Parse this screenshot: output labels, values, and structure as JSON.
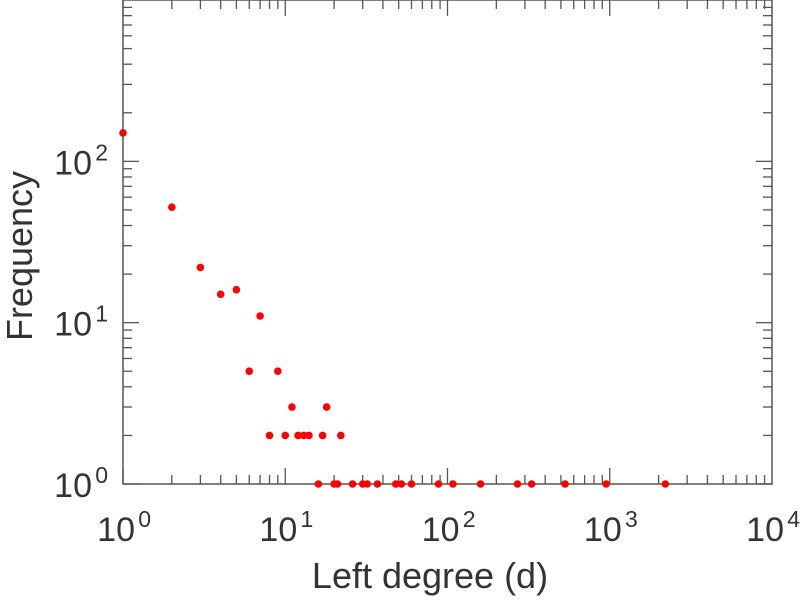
{
  "chart_data": {
    "type": "scatter",
    "title": "",
    "xlabel": "Left degree (d)",
    "ylabel": "Frequency",
    "xscale": "log",
    "yscale": "log",
    "xlim": [
      1,
      10000
    ],
    "ylim": [
      1,
      1000
    ],
    "grid": false,
    "marker_color": "#ff0000",
    "x_ticks": [
      {
        "base": "10",
        "exp": "0"
      },
      {
        "base": "10",
        "exp": "1"
      },
      {
        "base": "10",
        "exp": "2"
      },
      {
        "base": "10",
        "exp": "3"
      },
      {
        "base": "10",
        "exp": "4"
      }
    ],
    "y_ticks": [
      {
        "base": "10",
        "exp": "0"
      },
      {
        "base": "10",
        "exp": "1"
      },
      {
        "base": "10",
        "exp": "2"
      }
    ],
    "points": [
      {
        "x": 1,
        "y": 150
      },
      {
        "x": 2,
        "y": 52
      },
      {
        "x": 3,
        "y": 22
      },
      {
        "x": 4,
        "y": 15
      },
      {
        "x": 5,
        "y": 16
      },
      {
        "x": 6,
        "y": 5
      },
      {
        "x": 7,
        "y": 11
      },
      {
        "x": 8,
        "y": 2
      },
      {
        "x": 9,
        "y": 5
      },
      {
        "x": 10,
        "y": 2
      },
      {
        "x": 11,
        "y": 3
      },
      {
        "x": 12,
        "y": 2
      },
      {
        "x": 13,
        "y": 2
      },
      {
        "x": 14,
        "y": 2
      },
      {
        "x": 16,
        "y": 1
      },
      {
        "x": 17,
        "y": 2
      },
      {
        "x": 18,
        "y": 3
      },
      {
        "x": 20,
        "y": 1
      },
      {
        "x": 21,
        "y": 1
      },
      {
        "x": 22,
        "y": 2
      },
      {
        "x": 26,
        "y": 1
      },
      {
        "x": 30,
        "y": 1
      },
      {
        "x": 32,
        "y": 1
      },
      {
        "x": 37,
        "y": 1
      },
      {
        "x": 48,
        "y": 1
      },
      {
        "x": 52,
        "y": 1
      },
      {
        "x": 60,
        "y": 1
      },
      {
        "x": 88,
        "y": 1
      },
      {
        "x": 108,
        "y": 1
      },
      {
        "x": 160,
        "y": 1
      },
      {
        "x": 270,
        "y": 1
      },
      {
        "x": 330,
        "y": 1
      },
      {
        "x": 530,
        "y": 1
      },
      {
        "x": 950,
        "y": 1
      },
      {
        "x": 2200,
        "y": 1
      }
    ]
  }
}
